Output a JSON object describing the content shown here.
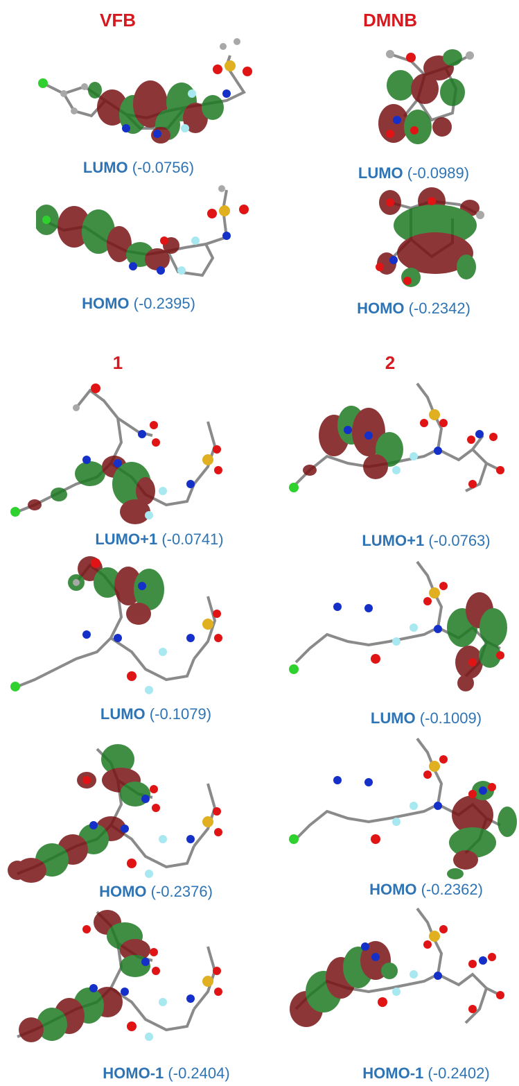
{
  "headings": {
    "vfb": "VFB",
    "dmnb": "DMNB",
    "comp1": "1",
    "comp2": "2"
  },
  "colors": {
    "heading": "#d7191f",
    "caption": "#2e74b5",
    "lobe_red": "#7a1416",
    "lobe_green": "#1f7a24",
    "carbon": "#9a9a9a",
    "oxygen": "#e01414",
    "nitrogen": "#1430c8",
    "chlorine": "#2ed12e",
    "fluorine": "#a8e8f0",
    "sulfur": "#e0b020"
  },
  "panels": {
    "vfb_lumo": {
      "orbital": "LUMO",
      "energy": "(-0.0756)"
    },
    "vfb_homo": {
      "orbital": "HOMO",
      "energy": "(-0.2395)"
    },
    "dmnb_lumo": {
      "orbital": "LUMO",
      "energy": "(-0.0989)"
    },
    "dmnb_homo": {
      "orbital": "HOMO",
      "energy": "(-0.2342)"
    },
    "c1_lumo1": {
      "orbital": "LUMO+1",
      "energy": "(-0.0741)"
    },
    "c2_lumo1": {
      "orbital": "LUMO+1",
      "energy": "(-0.0763)"
    },
    "c1_lumo": {
      "orbital": "LUMO",
      "energy": "(-0.1079)"
    },
    "c2_lumo": {
      "orbital": "LUMO",
      "energy": "(-0.1009)"
    },
    "c1_homo": {
      "orbital": "HOMO",
      "energy": "(-0.2376)"
    },
    "c2_homo": {
      "orbital": "HOMO",
      "energy": "(-0.2362)"
    },
    "c1_homo1": {
      "orbital": "HOMO-1",
      "energy": "(-0.2404)"
    },
    "c2_homo1": {
      "orbital": "HOMO-1",
      "energy": "(-0.2402)"
    }
  }
}
